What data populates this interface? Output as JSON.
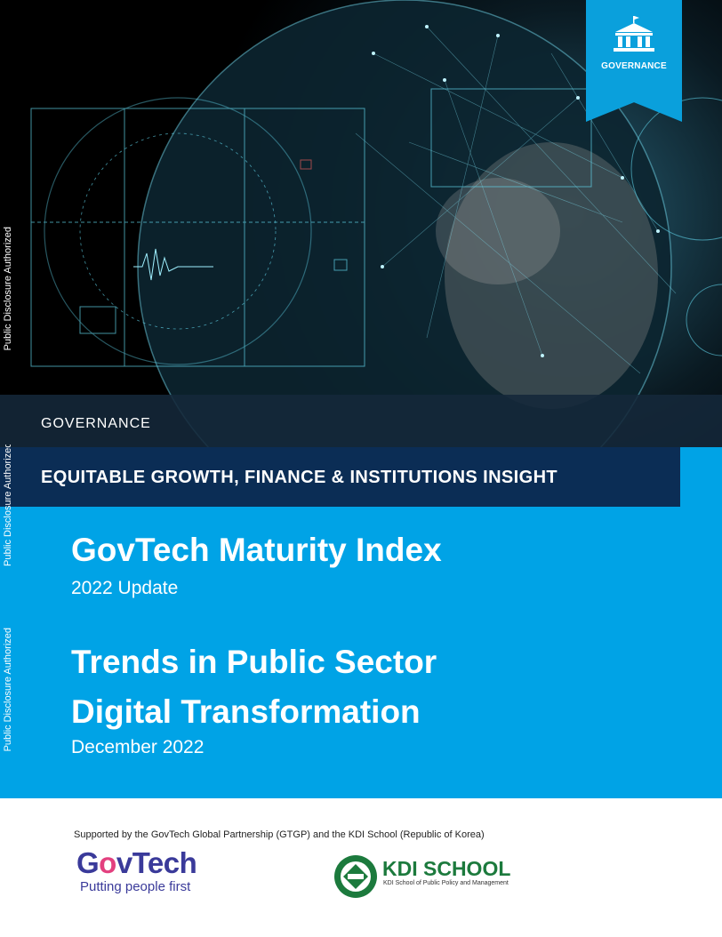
{
  "badge": {
    "label": "GOVERNANCE",
    "icon": "government-building-icon"
  },
  "section_label": "GOVERNANCE",
  "series_title": "EQUITABLE GROWTH, FINANCE & INSTITUTIONS INSIGHT",
  "title": "GovTech Maturity Index",
  "subtitle": "2022 Update",
  "report_title": {
    "line1": "Trends in Public Sector",
    "line2": "Digital Transformation"
  },
  "date": "December 2022",
  "disclosure_stamps": [
    "Public Disclosure Authorized",
    "Public Disclosure Authorized",
    "Public Disclosure Authorized"
  ],
  "footer": {
    "supported_by": "Supported by the GovTech Global Partnership (GTGP) and the KDI School (Republic of Korea)",
    "govtech_name_pre": "G",
    "govtech_name_o": "o",
    "govtech_name_post": "vTech",
    "govtech_tagline": "Putting people first",
    "kdi_name": "KDI SCHOOL",
    "kdi_tagline": "KDI School of Public Policy and Management"
  },
  "colors": {
    "cyan": "#00a3e6",
    "navy": "#0b2d55",
    "ribbon": "#0aa0dc",
    "govtech_purple": "#3a3a9a",
    "kdi_green": "#1c7a3d"
  }
}
